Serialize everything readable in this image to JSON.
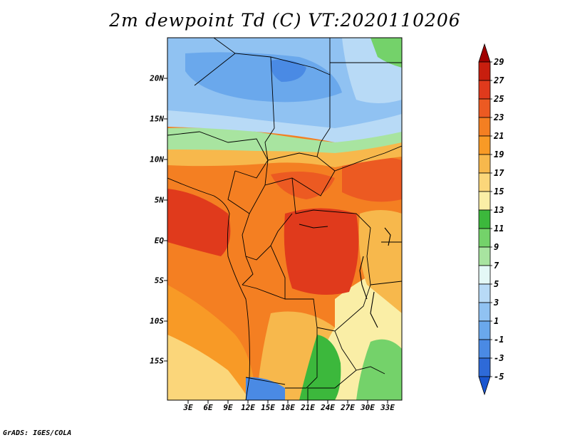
{
  "title": "2m dewpoint Td (C) VT:2020110206",
  "credit": "GrADS: IGES/COLA",
  "map": {
    "lat_labels": [
      "20N",
      "15N",
      "10N",
      "5N",
      "EQ",
      "5S",
      "10S",
      "15S"
    ],
    "lon_labels": [
      "3E",
      "6E",
      "9E",
      "12E",
      "15E",
      "18E",
      "21E",
      "24E",
      "27E",
      "30E",
      "33E"
    ]
  },
  "colorbar": {
    "labels": [
      "29",
      "27",
      "25",
      "23",
      "21",
      "19",
      "17",
      "15",
      "13",
      "11",
      "9",
      "7",
      "5",
      "3",
      "1",
      "-1",
      "-3",
      "-5"
    ],
    "colors": [
      "#a00000",
      "#c81e0e",
      "#e03a1c",
      "#ec5a22",
      "#f47f22",
      "#f89a26",
      "#f7b84c",
      "#fbd67a",
      "#faeea6",
      "#3cb83c",
      "#74d26a",
      "#a8e4a0",
      "#e4f8f6",
      "#b8daf6",
      "#90c2f2",
      "#6aa8ec",
      "#4a8ae4",
      "#2e6ad8",
      "#1a56d0"
    ]
  }
}
